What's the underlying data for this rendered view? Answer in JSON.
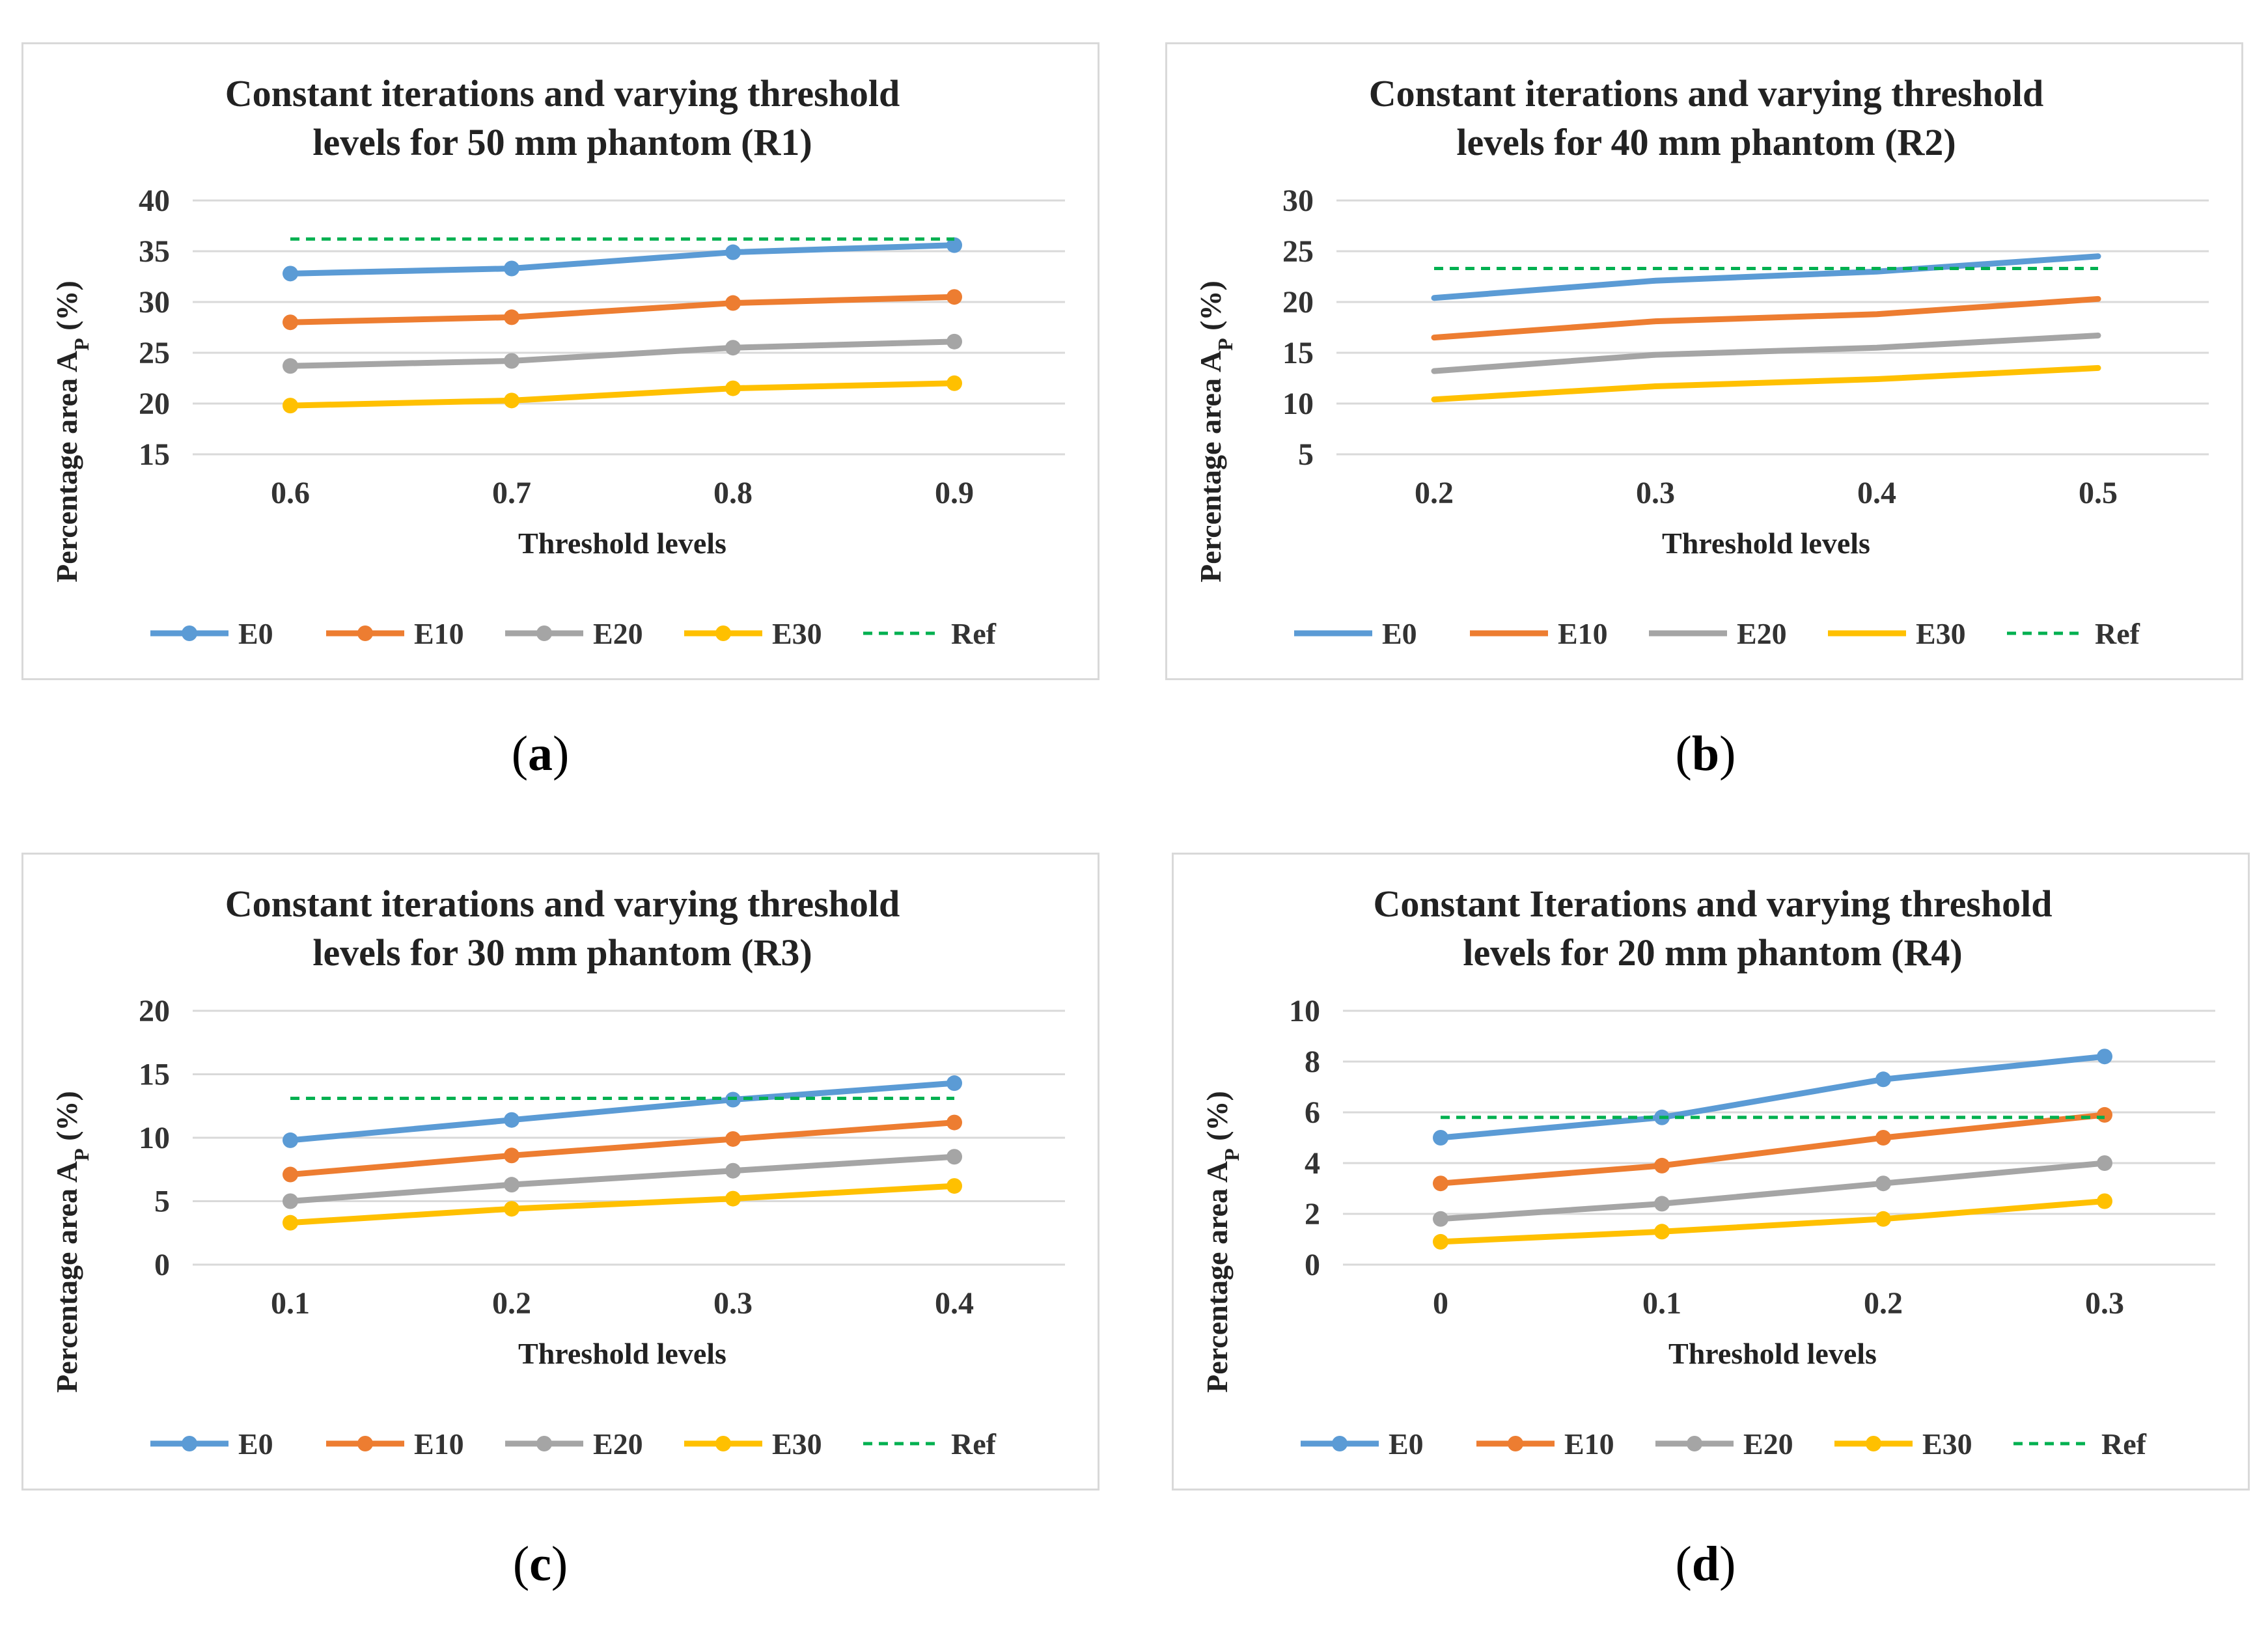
{
  "colors": {
    "E0": "#5b9bd5",
    "E10": "#ed7d31",
    "E20": "#a5a5a5",
    "E30": "#ffc000",
    "Ref": "#00b050",
    "grid": "#d9d9d9"
  },
  "chart_data": [
    {
      "type": "line",
      "caption": "a",
      "title": [
        "Constant iterations and varying threshold",
        "levels for 50 mm phantom (R1)"
      ],
      "xlabel": "Threshold levels",
      "ylabel": "Percentage area A",
      "ylabel_sub": "P",
      "ylabel_end": " (%)",
      "categories": [
        "0.6",
        "0.7",
        "0.8",
        "0.9"
      ],
      "ylim": [
        15,
        40
      ],
      "yticks": [
        15,
        20,
        25,
        30,
        35,
        40
      ],
      "markers": true,
      "series": [
        {
          "name": "E0",
          "values": [
            32.8,
            33.3,
            34.9,
            35.6
          ]
        },
        {
          "name": "E10",
          "values": [
            28.0,
            28.5,
            29.9,
            30.5
          ]
        },
        {
          "name": "E20",
          "values": [
            23.7,
            24.2,
            25.5,
            26.1
          ]
        },
        {
          "name": "E30",
          "values": [
            19.8,
            20.3,
            21.5,
            22.0
          ]
        },
        {
          "name": "Ref",
          "values": [
            36.2,
            36.2,
            36.2,
            36.2
          ],
          "dashed": true
        }
      ]
    },
    {
      "type": "line",
      "caption": "b",
      "title": [
        "Constant iterations and varying threshold",
        "levels for 40 mm phantom (R2)"
      ],
      "xlabel": "Threshold levels",
      "ylabel": "Percentage area A",
      "ylabel_sub": "P",
      "ylabel_end": " (%)",
      "categories": [
        "0.2",
        "0.3",
        "0.4",
        "0.5"
      ],
      "ylim": [
        5,
        30
      ],
      "yticks": [
        5,
        10,
        15,
        20,
        25,
        30
      ],
      "markers": false,
      "series": [
        {
          "name": "E0",
          "values": [
            20.4,
            22.1,
            23.0,
            24.5
          ]
        },
        {
          "name": "E10",
          "values": [
            16.5,
            18.1,
            18.8,
            20.3
          ]
        },
        {
          "name": "E20",
          "values": [
            13.2,
            14.8,
            15.5,
            16.7
          ]
        },
        {
          "name": "E30",
          "values": [
            10.4,
            11.7,
            12.4,
            13.5
          ]
        },
        {
          "name": "Ref",
          "values": [
            23.3,
            23.3,
            23.3,
            23.3
          ],
          "dashed": true
        }
      ]
    },
    {
      "type": "line",
      "caption": "c",
      "title": [
        "Constant iterations and varying threshold",
        "levels for 30 mm phantom (R3)"
      ],
      "xlabel": "Threshold levels",
      "ylabel": "Percentage area A",
      "ylabel_sub": "P",
      "ylabel_end": " (%)",
      "categories": [
        "0.1",
        "0.2",
        "0.3",
        "0.4"
      ],
      "ylim": [
        0,
        20
      ],
      "yticks": [
        0,
        5,
        10,
        15,
        20
      ],
      "markers": true,
      "series": [
        {
          "name": "E0",
          "values": [
            9.8,
            11.4,
            13.0,
            14.3
          ]
        },
        {
          "name": "E10",
          "values": [
            7.1,
            8.6,
            9.9,
            11.2
          ]
        },
        {
          "name": "E20",
          "values": [
            5.0,
            6.3,
            7.4,
            8.5
          ]
        },
        {
          "name": "E30",
          "values": [
            3.3,
            4.4,
            5.2,
            6.2
          ]
        },
        {
          "name": "Ref",
          "values": [
            13.1,
            13.1,
            13.1,
            13.1
          ],
          "dashed": true
        }
      ]
    },
    {
      "type": "line",
      "caption": "d",
      "title": [
        "Constant Iterations and varying threshold",
        "levels for 20 mm phantom (R4)"
      ],
      "xlabel": "Threshold levels",
      "ylabel": "Percentage area A",
      "ylabel_sub": "P",
      "ylabel_end": " (%)",
      "categories": [
        "0",
        "0.1",
        "0.2",
        "0.3"
      ],
      "ylim": [
        0,
        10
      ],
      "yticks": [
        0,
        2,
        4,
        6,
        8,
        10
      ],
      "markers": true,
      "series": [
        {
          "name": "E0",
          "values": [
            5.0,
            5.8,
            7.3,
            8.2
          ]
        },
        {
          "name": "E10",
          "values": [
            3.2,
            3.9,
            5.0,
            5.9
          ]
        },
        {
          "name": "E20",
          "values": [
            1.8,
            2.4,
            3.2,
            4.0
          ]
        },
        {
          "name": "E30",
          "values": [
            0.9,
            1.3,
            1.8,
            2.5
          ]
        },
        {
          "name": "Ref",
          "values": [
            5.8,
            5.8,
            5.8,
            5.8
          ],
          "dashed": true
        }
      ]
    }
  ]
}
